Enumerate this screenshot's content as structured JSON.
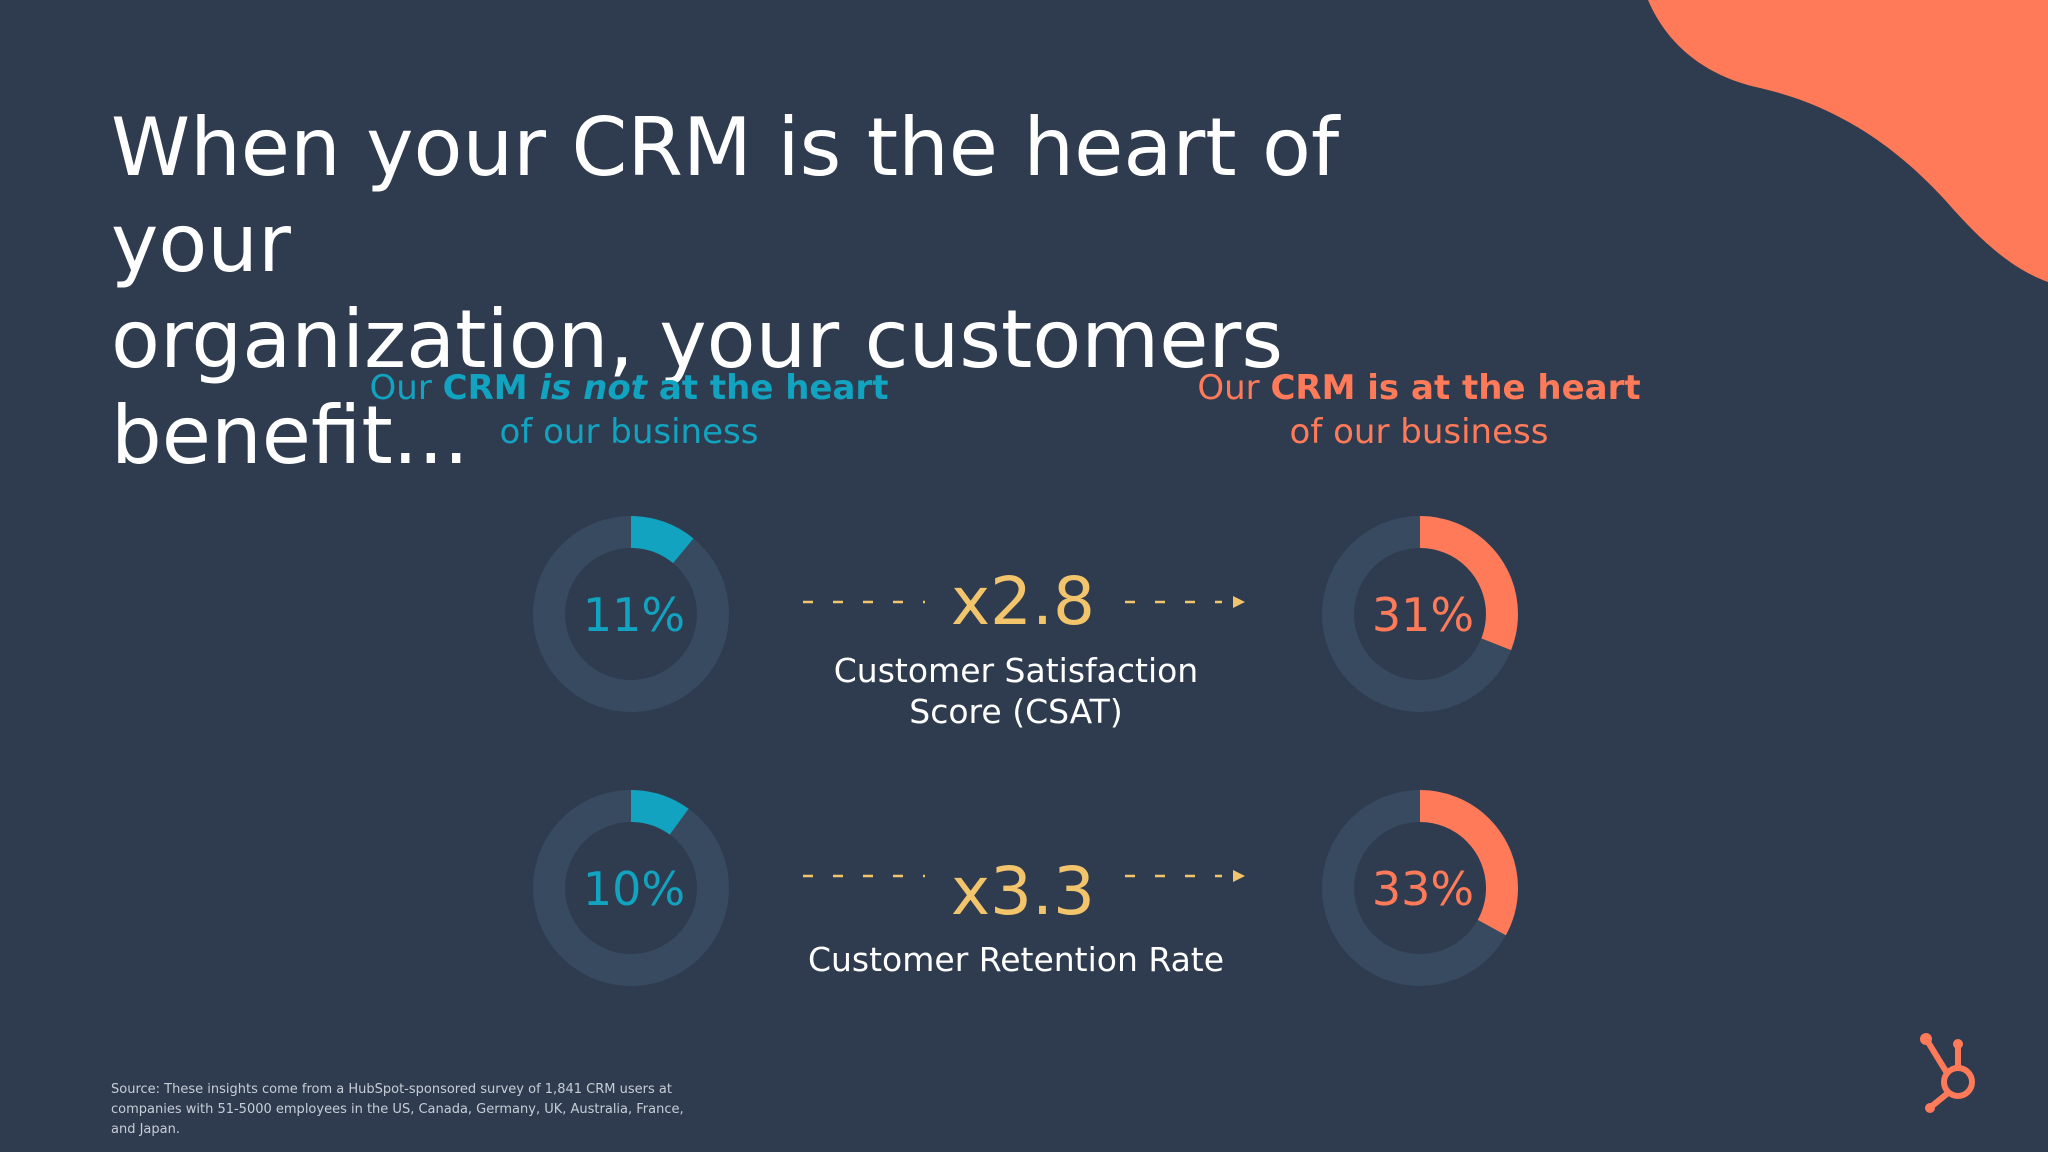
{
  "title_lines": [
    "When your CRM is the heart of your",
    "organization, your customers",
    "benefit..."
  ],
  "groups": {
    "left": {
      "pre": "Our ",
      "strong1": "CRM ",
      "emph": "is not",
      "strong2": " at the heart",
      "line2": "of our business",
      "color": "#11a3bf"
    },
    "right": {
      "pre": "Our ",
      "strong": "CRM is at the heart",
      "line2": "of our business",
      "color": "#ff7a59"
    }
  },
  "colors": {
    "background": "#2f3c4f",
    "ring_track": "#384a5f",
    "left_accent": "#11a3bf",
    "right_accent": "#ff7a59",
    "multiplier": "#f2c46c",
    "blob": "#ff7a59"
  },
  "chart_data": {
    "type": "donut-comparison",
    "series": [
      {
        "name": "Our CRM is not at the heart of our business",
        "values": [
          11,
          10
        ]
      },
      {
        "name": "Our CRM is at the heart of our business",
        "values": [
          31,
          33
        ]
      }
    ],
    "categories": [
      "Customer Satisfaction Score (CSAT)",
      "Customer Retention Rate"
    ],
    "metrics": [
      {
        "label_lines": [
          "Customer Satisfaction",
          "Score (CSAT)"
        ],
        "left_value": 11,
        "left_label": "11%",
        "right_value": 31,
        "right_label": "31%",
        "multiplier": "x2.8"
      },
      {
        "label_lines": [
          "Customer Retention Rate"
        ],
        "left_value": 10,
        "left_label": "10%",
        "right_value": 33,
        "right_label": "33%",
        "multiplier": "x3.3"
      }
    ]
  },
  "source_text": "Source: These insights come from a HubSpot-sponsored survey of 1,841 CRM users at companies with 51-5000 employees in the US, Canada, Germany, UK, Australia, France, and Japan.",
  "logo_icon": "hubspot-sprocket-icon"
}
